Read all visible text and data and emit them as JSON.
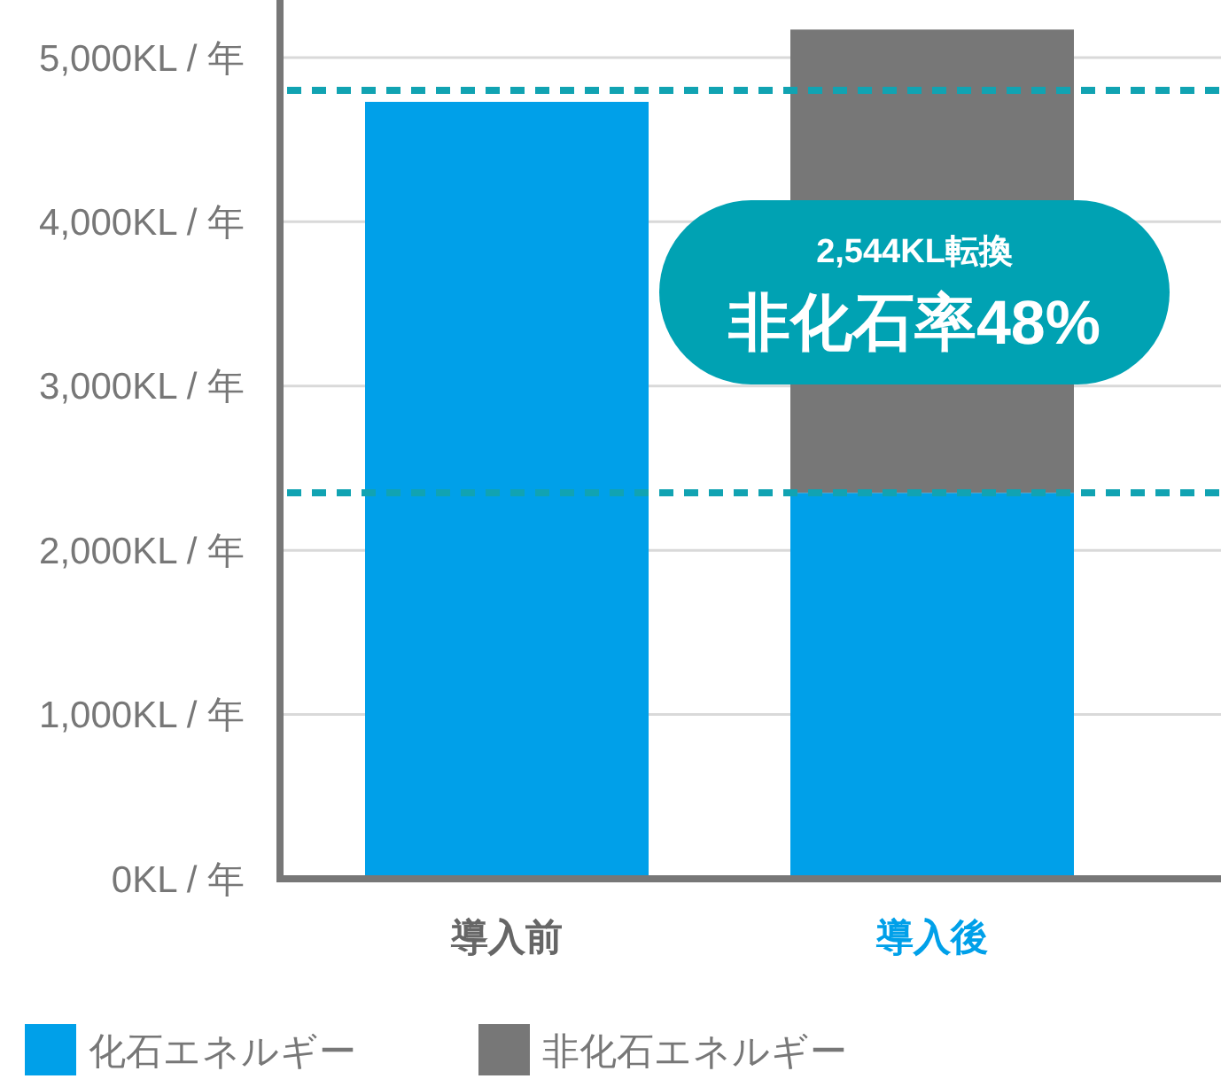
{
  "chart_data": {
    "type": "bar",
    "stacked": true,
    "categories": [
      "導入前",
      "導入後"
    ],
    "series": [
      {
        "name": "化石エネルギー",
        "color": "#00a0e9",
        "values": [
          4730,
          2350
        ]
      },
      {
        "name": "非化石エネルギー",
        "color": "#777777",
        "values": [
          null,
          2820
        ]
      }
    ],
    "ylim": [
      0,
      5350
    ],
    "yticks": [
      {
        "value": 0,
        "label": "0KL / 年"
      },
      {
        "value": 1000,
        "label": "1,000KL / 年"
      },
      {
        "value": 2000,
        "label": "2,000KL / 年"
      },
      {
        "value": 3000,
        "label": "3,000KL / 年"
      },
      {
        "value": 4000,
        "label": "4,000KL / 年"
      },
      {
        "value": 5000,
        "label": "5,000KL / 年"
      }
    ],
    "grid": "y",
    "legend": "bottom left",
    "ref_lines": [
      {
        "axis": "y",
        "value": 4800,
        "color": "#11a3b2",
        "line_style": "dashed"
      },
      {
        "axis": "y",
        "value": 2350,
        "color": "#11a3b2",
        "line_style": "dashed"
      }
    ],
    "annotations": [
      "2,544KL転換",
      "非化石率48%"
    ]
  }
}
